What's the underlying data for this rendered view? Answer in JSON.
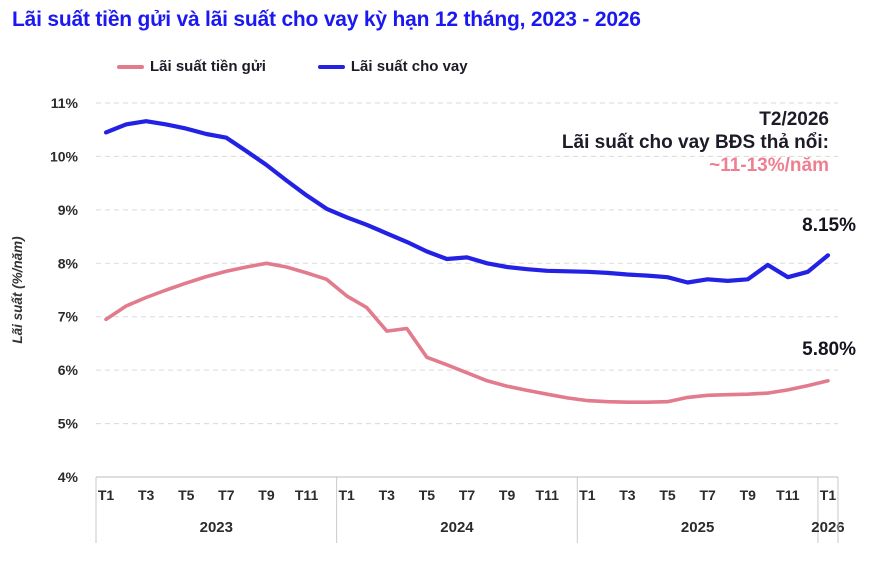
{
  "title": "Lãi suất tiền gửi và lãi suất cho vay kỳ hạn 12 tháng, 2023 - 2026",
  "annotation": {
    "line1": "T2/2026",
    "line2": "Lãi suất cho vay BĐS thả nổi:",
    "line3": "~11-13%/năm"
  },
  "end_labels": {
    "lending": "8.15%",
    "deposit": "5.80%"
  },
  "colors": {
    "title_blue": "#1b18f2",
    "lending_line": "#2321e3",
    "deposit_line": "#e27b8c",
    "annotation_pink": "#ee7f90",
    "dark_text": "#1c1c28",
    "grid": "#dadada",
    "axis": "#c9c9c9"
  },
  "chart_data": {
    "type": "line",
    "title": "Lãi suất tiền gửi và lãi suất cho vay kỳ hạn 12 tháng, 2023 - 2026",
    "xlabel": "",
    "ylabel": "Lãi suất (%/năm)",
    "ylim": [
      4,
      11
    ],
    "grid": "horizontal-dashed",
    "legend_position": "top-left",
    "x_months_total": 37,
    "x_range": "T1/2023 - T1/2026",
    "yticks": [
      {
        "v": 4,
        "label": "4%"
      },
      {
        "v": 5,
        "label": "5%"
      },
      {
        "v": 6,
        "label": "6%"
      },
      {
        "v": 7,
        "label": "7%"
      },
      {
        "v": 8,
        "label": "8%"
      },
      {
        "v": 9,
        "label": "9%"
      },
      {
        "v": 10,
        "label": "10%"
      },
      {
        "v": 11,
        "label": "11%"
      }
    ],
    "year_groups": [
      {
        "label": "2023",
        "start": 0,
        "count": 12
      },
      {
        "label": "2024",
        "start": 12,
        "count": 12
      },
      {
        "label": "2025",
        "start": 24,
        "count": 12
      },
      {
        "label": "2026",
        "start": 36,
        "count": 1
      }
    ],
    "x_ticks": [
      {
        "i": 0,
        "label": "T1"
      },
      {
        "i": 2,
        "label": "T3"
      },
      {
        "i": 4,
        "label": "T5"
      },
      {
        "i": 6,
        "label": "T7"
      },
      {
        "i": 8,
        "label": "T9"
      },
      {
        "i": 10,
        "label": "T11"
      },
      {
        "i": 12,
        "label": "T1"
      },
      {
        "i": 14,
        "label": "T3"
      },
      {
        "i": 16,
        "label": "T5"
      },
      {
        "i": 18,
        "label": "T7"
      },
      {
        "i": 20,
        "label": "T9"
      },
      {
        "i": 22,
        "label": "T11"
      },
      {
        "i": 24,
        "label": "T1"
      },
      {
        "i": 26,
        "label": "T3"
      },
      {
        "i": 28,
        "label": "T5"
      },
      {
        "i": 30,
        "label": "T7"
      },
      {
        "i": 32,
        "label": "T9"
      },
      {
        "i": 34,
        "label": "T11"
      },
      {
        "i": 36,
        "label": "T1"
      }
    ],
    "series": [
      {
        "key": "deposit",
        "name": "Lãi suất tiền gửi",
        "color": "#e27b8c",
        "values": [
          6.95,
          7.2,
          7.36,
          7.5,
          7.63,
          7.75,
          7.85,
          7.93,
          8.0,
          7.93,
          7.82,
          7.7,
          7.39,
          7.17,
          6.73,
          6.78,
          6.24,
          6.1,
          5.95,
          5.8,
          5.7,
          5.62,
          5.55,
          5.48,
          5.43,
          5.41,
          5.4,
          5.4,
          5.41,
          5.49,
          5.53,
          5.54,
          5.55,
          5.57,
          5.63,
          5.71,
          5.8
        ]
      },
      {
        "key": "lending",
        "name": "Lãi suất cho vay",
        "color": "#2321e3",
        "values": [
          10.45,
          10.6,
          10.66,
          10.6,
          10.52,
          10.42,
          10.35,
          10.1,
          9.84,
          9.55,
          9.27,
          9.02,
          8.86,
          8.72,
          8.56,
          8.4,
          8.22,
          8.08,
          8.11,
          8.0,
          7.93,
          7.89,
          7.86,
          7.85,
          7.84,
          7.82,
          7.79,
          7.77,
          7.74,
          7.64,
          7.7,
          7.67,
          7.7,
          7.97,
          7.74,
          7.84,
          8.15
        ]
      }
    ]
  }
}
